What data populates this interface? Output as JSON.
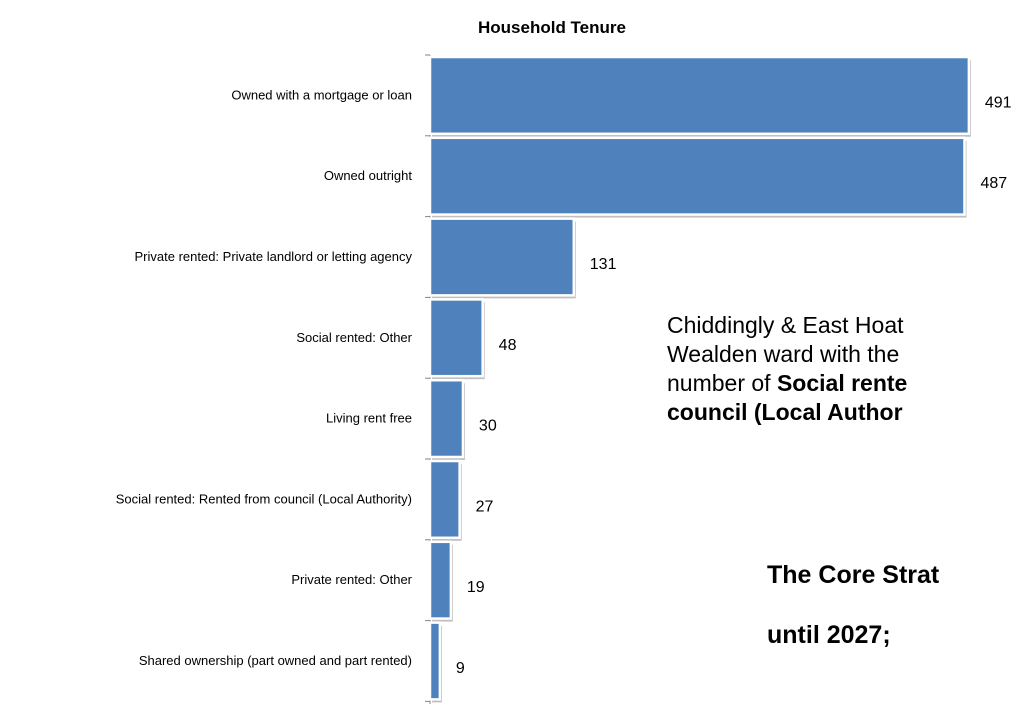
{
  "chart_data": {
    "type": "bar",
    "orientation": "horizontal",
    "title": "Household Tenure",
    "categories": [
      "Owned with a mortgage or loan",
      "Owned outright",
      "Private rented: Private landlord or letting agency",
      "Social rented: Other",
      "Living rent free",
      "Social rented: Rented from council (Local Authority)",
      "Private rented: Other",
      "Shared ownership (part owned and part rented)"
    ],
    "values": [
      491,
      487,
      131,
      48,
      30,
      27,
      19,
      9
    ],
    "bar_color": "#4f81bd",
    "data_labels": true,
    "grid": false
  },
  "text_block": {
    "line1": "Chiddingly & East Hoat",
    "line2": "Wealden ward with the",
    "line3_normal": "number of ",
    "line3_bold": "Social rente",
    "line4_bold": "council (Local Author"
  },
  "core_strategy": {
    "line1": "The Core Strat",
    "line2": "until 2027;"
  }
}
